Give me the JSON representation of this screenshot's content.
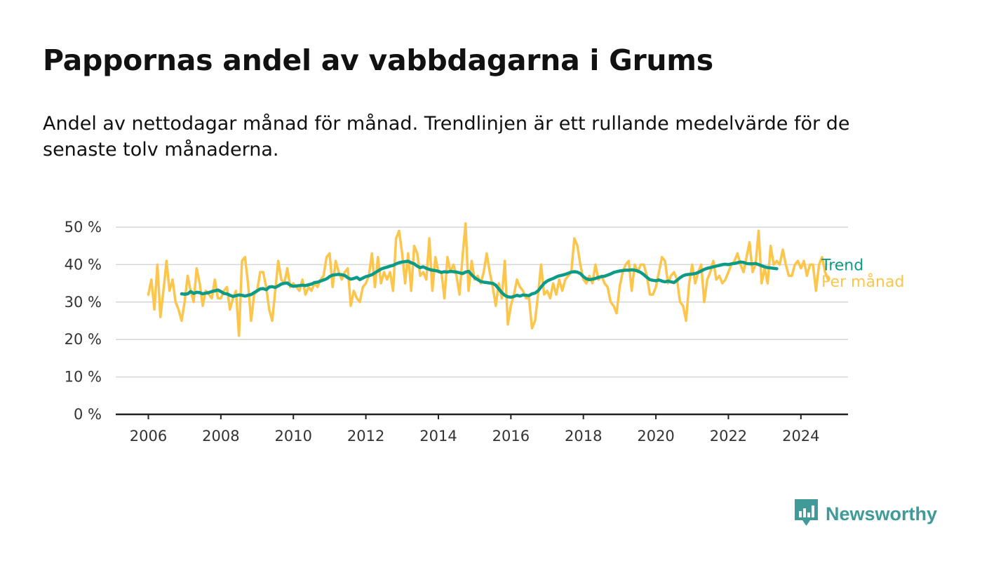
{
  "title": "Pappornas andel av vabbdagarna i Grums",
  "subtitle": "Andel av nettodagar månad för månad. Trendlinjen är ett rullande medelvärde för de senaste tolv månaderna.",
  "brand": {
    "name": "Newsworthy",
    "icon": "newsworthy-logo-icon",
    "color": "#3f9a98"
  },
  "chart_data": {
    "type": "line",
    "ylim": [
      0,
      50
    ],
    "xlim": [
      2005.1,
      2025.3
    ],
    "y_ticks": [
      0,
      10,
      20,
      30,
      40,
      50
    ],
    "y_tick_labels": [
      "0 %",
      "10 %",
      "20 %",
      "30 %",
      "40 %",
      "50 %"
    ],
    "x_ticks": [
      2006,
      2008,
      2010,
      2012,
      2014,
      2016,
      2018,
      2020,
      2022,
      2024
    ],
    "x_tick_labels": [
      "2006",
      "2008",
      "2010",
      "2012",
      "2014",
      "2016",
      "2018",
      "2020",
      "2022",
      "2024"
    ],
    "grid": true,
    "legend": "direct labels at right end of lines",
    "series": [
      {
        "name": "Per månad",
        "color": "#fcc54b",
        "x_start": 2006.0,
        "x_step_months": 1,
        "values": [
          32,
          36,
          28,
          40,
          26,
          33,
          41,
          33,
          36,
          30,
          28,
          25,
          30,
          37,
          33,
          30,
          39,
          35,
          29,
          33,
          32,
          31,
          36,
          31,
          31,
          33,
          34,
          28,
          31,
          33,
          21,
          41,
          42,
          35,
          25,
          32,
          33,
          38,
          38,
          34,
          28,
          25,
          33,
          41,
          36,
          35,
          39,
          34,
          35,
          34,
          33,
          36,
          32,
          34,
          33,
          35,
          34,
          36,
          37,
          42,
          43,
          34,
          41,
          38,
          36,
          38,
          39,
          29,
          33,
          31,
          30,
          34,
          35,
          37,
          43,
          34,
          42,
          35,
          38,
          36,
          38,
          33,
          47,
          49,
          43,
          35,
          43,
          33,
          45,
          43,
          37,
          38,
          36,
          47,
          33,
          42,
          38,
          38,
          31,
          42,
          38,
          40,
          37,
          32,
          42,
          51,
          33,
          41,
          36,
          37,
          35,
          38,
          43,
          38,
          34,
          29,
          35,
          31,
          41,
          24,
          29,
          32,
          36,
          34,
          33,
          31,
          31,
          23,
          25,
          32,
          40,
          32,
          33,
          31,
          35,
          32,
          36,
          33,
          36,
          37,
          38,
          47,
          45,
          40,
          36,
          35,
          37,
          35,
          40,
          36,
          37,
          35,
          34,
          30,
          29,
          27,
          34,
          38,
          40,
          41,
          33,
          40,
          38,
          40,
          40,
          37,
          32,
          32,
          34,
          38,
          42,
          41,
          35,
          37,
          38,
          36,
          30,
          29,
          25,
          35,
          40,
          35,
          38,
          40,
          30,
          36,
          38,
          41,
          36,
          37,
          35,
          36,
          38,
          40,
          41,
          43,
          40,
          38,
          42,
          46,
          38,
          40,
          49,
          35,
          39,
          35,
          45,
          40,
          41,
          40,
          44,
          40,
          37,
          37,
          40,
          41,
          39,
          41,
          37,
          40,
          40,
          33,
          40,
          42,
          38,
          36
        ],
        "label": "Per månad"
      },
      {
        "name": "Trend",
        "color": "#0d9a86",
        "x_start": 2006.9167,
        "x_step_months": 1,
        "values": [
          32.2,
          32.1,
          32.2,
          32.8,
          32.3,
          32.6,
          32.5,
          32.2,
          32.4,
          32.5,
          32.8,
          33.0,
          33.2,
          32.8,
          32.3,
          32.2,
          31.8,
          31.5,
          31.7,
          31.9,
          31.8,
          31.6,
          31.8,
          32.0,
          32.5,
          33.0,
          33.5,
          33.6,
          33.3,
          34.0,
          34.1,
          33.9,
          34.3,
          34.8,
          35.0,
          35.1,
          34.5,
          34.2,
          34.3,
          34.4,
          34.5,
          34.4,
          34.6,
          34.8,
          35.2,
          35.3,
          35.6,
          35.9,
          36.2,
          36.8,
          37.2,
          37.3,
          37.4,
          37.3,
          37.1,
          36.5,
          36.1,
          36.3,
          36.6,
          36.0,
          36.4,
          36.8,
          37.0,
          37.3,
          37.8,
          38.3,
          38.8,
          39.1,
          39.3,
          39.6,
          39.8,
          40.2,
          40.5,
          40.7,
          40.8,
          40.9,
          40.5,
          40.2,
          39.6,
          39.2,
          39.4,
          39.0,
          38.7,
          38.5,
          38.4,
          38.2,
          37.9,
          38.1,
          38.0,
          38.2,
          38.1,
          38.0,
          37.8,
          37.6,
          38.0,
          38.2,
          37.3,
          36.5,
          36.0,
          35.5,
          35.3,
          35.2,
          35.1,
          35.0,
          34.5,
          33.5,
          32.5,
          31.8,
          31.4,
          31.3,
          31.5,
          31.8,
          31.6,
          31.9,
          31.8,
          31.7,
          32.2,
          32.4,
          33.0,
          34.0,
          35.0,
          35.6,
          36.0,
          36.3,
          36.7,
          37.0,
          37.2,
          37.4,
          37.7,
          38.0,
          38.1,
          38.0,
          37.6,
          36.8,
          36.2,
          36.0,
          36.1,
          36.3,
          36.6,
          36.8,
          36.9,
          37.2,
          37.5,
          37.9,
          38.1,
          38.3,
          38.4,
          38.5,
          38.5,
          38.6,
          38.5,
          38.3,
          37.9,
          37.3,
          36.6,
          36.0,
          35.8,
          35.7,
          35.9,
          35.6,
          35.4,
          35.6,
          35.4,
          35.2,
          35.8,
          36.5,
          37.0,
          37.3,
          37.4,
          37.5,
          37.6,
          37.9,
          38.3,
          38.7,
          39.0,
          39.2,
          39.4,
          39.6,
          39.8,
          40.0,
          40.1,
          40.0,
          40.2,
          40.3,
          40.5,
          40.7,
          40.6,
          40.3,
          40.2,
          40.2,
          40.3,
          40.0,
          39.7,
          39.4,
          39.2,
          39.1,
          39.0,
          38.9
        ],
        "label": "Trend"
      }
    ]
  }
}
